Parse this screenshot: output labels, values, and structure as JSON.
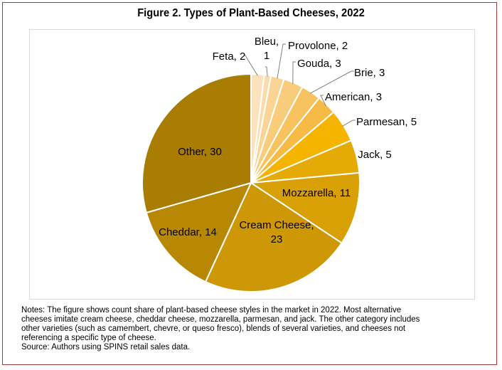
{
  "chart_data": {
    "type": "pie",
    "title": "Figure 2. Types of Plant-Based Cheeses, 2022",
    "slices": [
      {
        "label": "Feta",
        "value": 2,
        "color": "#fbe2bd"
      },
      {
        "label": "Bleu",
        "value": 1,
        "color": "#fadbaa"
      },
      {
        "label": "Provolone",
        "value": 2,
        "color": "#f9d494"
      },
      {
        "label": "Gouda",
        "value": 3,
        "color": "#f8cc7b"
      },
      {
        "label": "Brie",
        "value": 3,
        "color": "#f6c35f"
      },
      {
        "label": "American",
        "value": 3,
        "color": "#f5bb45"
      },
      {
        "label": "Parmesan",
        "value": 5,
        "color": "#f4b400"
      },
      {
        "label": "Jack",
        "value": 5,
        "color": "#e6aa07"
      },
      {
        "label": "Mozzarella",
        "value": 11,
        "color": "#d9a005"
      },
      {
        "label": "Cream Cheese",
        "value": 23,
        "color": "#cd9705"
      },
      {
        "label": "Cheddar",
        "value": 14,
        "color": "#b88703"
      },
      {
        "label": "Other",
        "value": 30,
        "color": "#a97c02"
      }
    ]
  },
  "notes": {
    "line1": "Notes: The figure shows count share of plant-based cheese styles in the market in 2022. Most alternative",
    "line2": "cheeses imitate cream cheese, cheddar cheese, mozzarella, parmesan, and jack. The other category includes",
    "line3": "other varieties (such as camembert, chevre, or queso fresco), blends of several varieties, and cheeses not",
    "line4": "referencing a specific type of cheese.",
    "source": "Source: Authors using SPINS retail sales data."
  }
}
